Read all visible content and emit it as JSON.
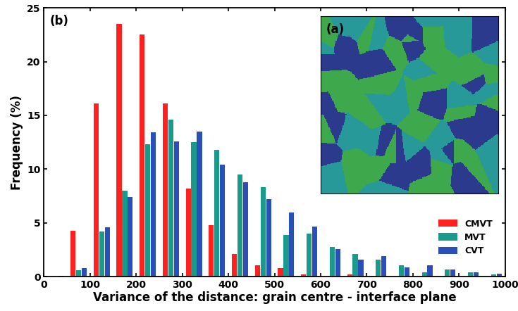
{
  "chart_data": {
    "type": "bar",
    "xlabel": "Variance of the distance: grain centre - interface plane",
    "ylabel": "Frequency (%)",
    "annotations": [
      "(b)",
      "(a)"
    ],
    "x": [
      25,
      75,
      125,
      175,
      225,
      275,
      325,
      375,
      425,
      475,
      525,
      575,
      625,
      675,
      725,
      775,
      825,
      875,
      925,
      975
    ],
    "series": [
      {
        "name": "CMVT",
        "color": "#ff2020",
        "values": [
          0,
          4.3,
          16.1,
          23.5,
          22.5,
          16.1,
          8.2,
          4.8,
          2.1,
          1.1,
          0.8,
          0.2,
          0,
          0.2,
          0.1,
          0,
          0,
          0,
          0,
          0
        ]
      },
      {
        "name": "MVT",
        "color": "#1a9a8a",
        "values": [
          0,
          0.6,
          4.2,
          8.0,
          12.3,
          14.6,
          12.5,
          11.8,
          9.5,
          8.3,
          3.9,
          4.0,
          2.8,
          2.1,
          1.6,
          1.1,
          0.4,
          0.7,
          0.4,
          0.2
        ]
      },
      {
        "name": "CVT",
        "color": "#2a4fb8",
        "values": [
          0.1,
          0.8,
          4.6,
          7.4,
          13.4,
          12.6,
          13.5,
          10.4,
          8.8,
          7.2,
          6.0,
          4.7,
          2.6,
          1.6,
          1.9,
          0.9,
          1.1,
          0.7,
          0.4,
          0.3
        ]
      }
    ],
    "xlim": [
      0,
      1000
    ],
    "ylim": [
      0,
      25
    ],
    "xticks": [
      0,
      100,
      200,
      300,
      400,
      500,
      600,
      700,
      800,
      900,
      1000
    ],
    "yticks": [
      0,
      5,
      10,
      15,
      20,
      25
    ],
    "legend": "lower right",
    "grid": false
  }
}
